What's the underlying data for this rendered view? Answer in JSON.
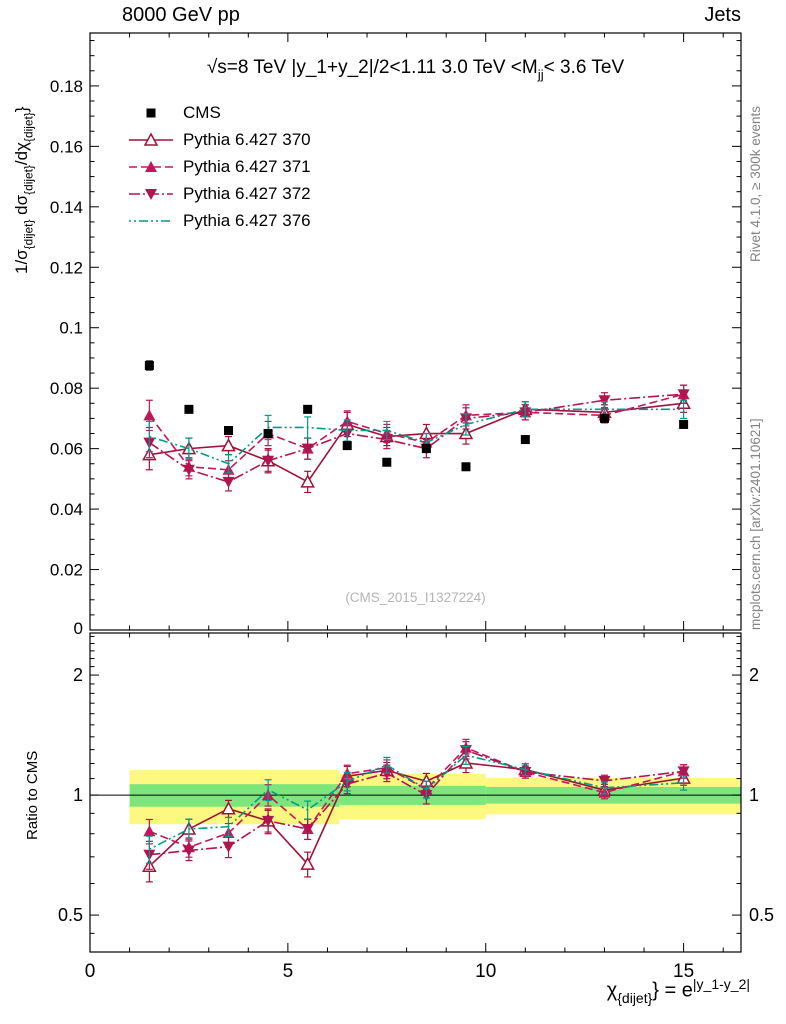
{
  "header": {
    "title_left": "8000 GeV pp",
    "title_right": "Jets"
  },
  "side_notes": {
    "right_top": "Rivet 4.1.0, ≥ 300k events",
    "right_bottom": "mcplots.cern.ch [arXiv:2401.10621]"
  },
  "watermark": "(CMS_2015_I1327224)",
  "chart_data": {
    "type": "line",
    "title_segments": [
      {
        "t": "√s=8 TeV |y_1+y_2|/2<1.11 3.0 TeV <M"
      },
      {
        "t": "jj",
        "sub": true
      },
      {
        "t": "< 3.6 TeV"
      }
    ],
    "xlabel_segments": [
      {
        "t": "χ"
      },
      {
        "t": "{dijet}",
        "sub": true
      },
      {
        "t": "} = e"
      },
      {
        "t": "|y_1-y_2|",
        "sup": true
      }
    ],
    "main_ylabel_segments": [
      {
        "t": "1/σ"
      },
      {
        "t": "{dijet}",
        "sub": true
      },
      {
        "t": " dσ"
      },
      {
        "t": "{dijet}",
        "sub": true
      },
      {
        "t": "/dχ"
      },
      {
        "t": "{dijet}",
        "sub": true
      },
      {
        "t": "}"
      }
    ],
    "ratio_ylabel": "Ratio to CMS",
    "x_range": [
      0,
      16.45
    ],
    "x_major_ticks": [
      0,
      5,
      10,
      15
    ],
    "x_minor_step": 1,
    "main_y_range": [
      0,
      0.1975
    ],
    "main_y_tick_step": 0.02,
    "main_y_minor_step": 0.005,
    "ratio_y_range": [
      0.404,
      2.55
    ],
    "ratio_y_ticks": [
      0.5,
      1,
      2
    ],
    "ratio_y_minor_ticks": [
      0.45,
      0.6,
      0.7,
      0.8,
      0.9,
      1.1,
      1.2,
      1.3,
      1.4,
      1.5,
      1.6,
      1.7,
      1.8,
      1.9,
      2.1,
      2.2,
      2.3,
      2.4,
      2.5
    ],
    "x": [
      1.5,
      2.5,
      3.5,
      4.5,
      5.5,
      6.5,
      7.5,
      8.5,
      9.5,
      11,
      13,
      15
    ],
    "ratio_reference": "CMS",
    "series": [
      {
        "name": "CMS",
        "color": "#000000",
        "marker": "square",
        "line_style": "none",
        "values": [
          0.0875,
          0.073,
          0.066,
          0.065,
          0.073,
          0.061,
          0.0555,
          0.06,
          0.054,
          0.063,
          0.07,
          0.068
        ],
        "yerr": [
          0.0015,
          0.0012,
          0.0012,
          0.0012,
          0.0012,
          0.0012,
          0.0012,
          0.0012,
          0.0012,
          0.0012,
          0.0012,
          0.0012
        ]
      },
      {
        "name": "Pythia 6.427 370",
        "color": "#a01236",
        "marker": "triangle-open",
        "line_style": "solid",
        "values": [
          0.058,
          0.06,
          0.061,
          0.056,
          0.049,
          0.068,
          0.064,
          0.065,
          0.065,
          0.073,
          0.072,
          0.075
        ],
        "yerr": [
          0.005,
          0.0035,
          0.003,
          0.004,
          0.0035,
          0.004,
          0.003,
          0.003,
          0.0035,
          0.0025,
          0.0025,
          0.003
        ]
      },
      {
        "name": "Pythia 6.427 371",
        "color": "#c2185b",
        "marker": "triangle-filled",
        "line_style": "dashed",
        "values": [
          0.071,
          0.054,
          0.053,
          0.065,
          0.06,
          0.069,
          0.065,
          0.062,
          0.071,
          0.072,
          0.071,
          0.078
        ],
        "yerr": [
          0.005,
          0.003,
          0.003,
          0.004,
          0.0035,
          0.0035,
          0.003,
          0.003,
          0.0035,
          0.0025,
          0.0025,
          0.003
        ]
      },
      {
        "name": "Pythia 6.427 372",
        "color": "#b01550",
        "marker": "triangle-down-filled",
        "line_style": "dashdot",
        "values": [
          0.062,
          0.053,
          0.049,
          0.056,
          0.06,
          0.065,
          0.063,
          0.06,
          0.07,
          0.072,
          0.076,
          0.078
        ],
        "yerr": [
          0.005,
          0.003,
          0.003,
          0.0035,
          0.0035,
          0.0035,
          0.003,
          0.003,
          0.0035,
          0.0025,
          0.0025,
          0.003
        ]
      },
      {
        "name": "Pythia 6.427 376",
        "color": "#009b8c",
        "marker": "none",
        "line_style": "dashdotdot",
        "values": [
          0.064,
          0.06,
          0.055,
          0.067,
          0.067,
          0.066,
          0.066,
          0.062,
          0.068,
          0.073,
          0.073,
          0.073
        ],
        "yerr": [
          0.005,
          0.0035,
          0.003,
          0.004,
          0.0035,
          0.0035,
          0.003,
          0.003,
          0.0035,
          0.0025,
          0.0025,
          0.003
        ]
      }
    ],
    "ratio_bands": [
      {
        "color": "#fdf87f",
        "segments": [
          [
            1.0,
            6.3,
            0.845,
            1.155
          ],
          [
            6.3,
            10.0,
            0.87,
            1.13
          ],
          [
            10.0,
            16.45,
            0.895,
            1.105
          ]
        ]
      },
      {
        "color": "#7ce57c",
        "segments": [
          [
            1.0,
            6.3,
            0.935,
            1.065
          ],
          [
            6.3,
            10.0,
            0.945,
            1.055
          ],
          [
            10.0,
            16.45,
            0.952,
            1.048
          ]
        ]
      }
    ]
  }
}
